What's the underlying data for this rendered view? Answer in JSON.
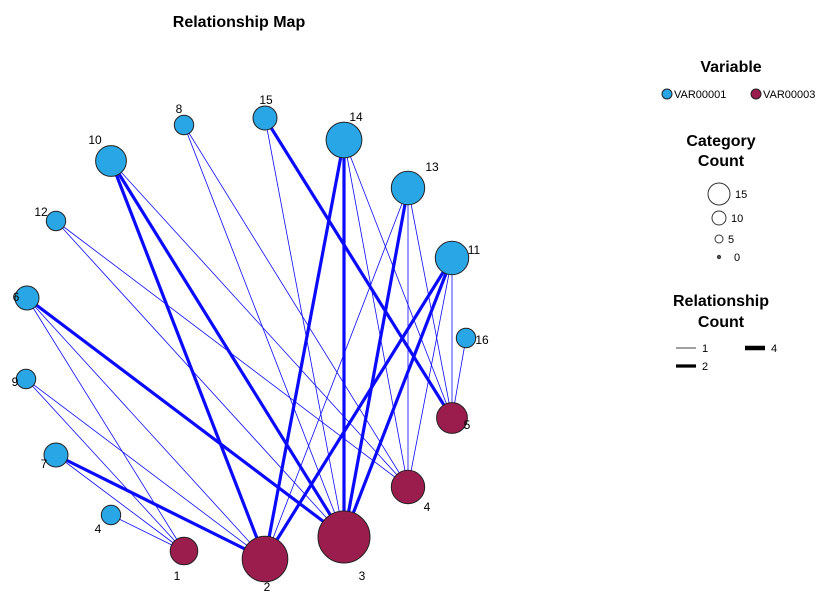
{
  "chart_data": {
    "type": "network",
    "title": "Relationship Map",
    "colors": {
      "VAR00001": "#29a6e6",
      "VAR00003": "#9b1d4d",
      "edge": "#0a0aff",
      "node_stroke": "#222222"
    },
    "nodes": [
      {
        "id": "8",
        "label": "8",
        "variable": "VAR00001",
        "count": 1
      },
      {
        "id": "15",
        "label": "15",
        "variable": "VAR00001",
        "count": 2
      },
      {
        "id": "14",
        "label": "14",
        "variable": "VAR00001",
        "count": 6
      },
      {
        "id": "13",
        "label": "13",
        "variable": "VAR00001",
        "count": 5
      },
      {
        "id": "10",
        "label": "10",
        "variable": "VAR00001",
        "count": 4
      },
      {
        "id": "12",
        "label": "12",
        "variable": "VAR00001",
        "count": 1
      },
      {
        "id": "11",
        "label": "11",
        "variable": "VAR00001",
        "count": 5
      },
      {
        "id": "6",
        "label": "6",
        "variable": "VAR00001",
        "count": 2
      },
      {
        "id": "16",
        "label": "16",
        "variable": "VAR00001",
        "count": 1
      },
      {
        "id": "9",
        "label": "9",
        "variable": "VAR00001",
        "count": 1
      },
      {
        "id": "7",
        "label": "7",
        "variable": "VAR00001",
        "count": 2
      },
      {
        "id": "4v1",
        "label": "4",
        "variable": "VAR00001",
        "count": 1
      },
      {
        "id": "1",
        "label": "1",
        "variable": "VAR00003",
        "count": 3
      },
      {
        "id": "2",
        "label": "2",
        "variable": "VAR00003",
        "count": 11
      },
      {
        "id": "3",
        "label": "3",
        "variable": "VAR00003",
        "count": 15
      },
      {
        "id": "4",
        "label": "4",
        "variable": "VAR00003",
        "count": 5
      },
      {
        "id": "5",
        "label": "5",
        "variable": "VAR00003",
        "count": 4
      }
    ],
    "edges": [
      {
        "source": "14",
        "target": "3",
        "count": 2
      },
      {
        "source": "14",
        "target": "2",
        "count": 2
      },
      {
        "source": "14",
        "target": "4",
        "count": 1
      },
      {
        "source": "14",
        "target": "5",
        "count": 1
      },
      {
        "source": "13",
        "target": "3",
        "count": 2
      },
      {
        "source": "13",
        "target": "2",
        "count": 1
      },
      {
        "source": "13",
        "target": "4",
        "count": 1
      },
      {
        "source": "13",
        "target": "5",
        "count": 1
      },
      {
        "source": "11",
        "target": "3",
        "count": 2
      },
      {
        "source": "11",
        "target": "2",
        "count": 2
      },
      {
        "source": "11",
        "target": "4",
        "count": 1
      },
      {
        "source": "11",
        "target": "5",
        "count": 1
      },
      {
        "source": "16",
        "target": "5",
        "count": 1
      },
      {
        "source": "15",
        "target": "5",
        "count": 2
      },
      {
        "source": "15",
        "target": "3",
        "count": 1
      },
      {
        "source": "8",
        "target": "4",
        "count": 1
      },
      {
        "source": "8",
        "target": "3",
        "count": 1
      },
      {
        "source": "10",
        "target": "2",
        "count": 2
      },
      {
        "source": "10",
        "target": "3",
        "count": 2
      },
      {
        "source": "10",
        "target": "4",
        "count": 1
      },
      {
        "source": "12",
        "target": "4",
        "count": 1
      },
      {
        "source": "12",
        "target": "3",
        "count": 1
      },
      {
        "source": "6",
        "target": "3",
        "count": 2
      },
      {
        "source": "6",
        "target": "1",
        "count": 1
      },
      {
        "source": "6",
        "target": "2",
        "count": 1
      },
      {
        "source": "9",
        "target": "1",
        "count": 1
      },
      {
        "source": "9",
        "target": "2",
        "count": 1
      },
      {
        "source": "7",
        "target": "2",
        "count": 2
      },
      {
        "source": "7",
        "target": "1",
        "count": 1
      },
      {
        "source": "4v1",
        "target": "1",
        "count": 1
      }
    ],
    "legend": {
      "variable_title": "Variable",
      "variables": [
        "VAR00001",
        "VAR00003"
      ],
      "category_count_title_line1": "Category",
      "category_count_title_line2": "Count",
      "category_count_values": [
        15,
        10,
        5,
        0
      ],
      "relationship_count_title_line1": "Relationship",
      "relationship_count_title_line2": "Count",
      "relationship_count_values": [
        1,
        2,
        4
      ]
    }
  }
}
